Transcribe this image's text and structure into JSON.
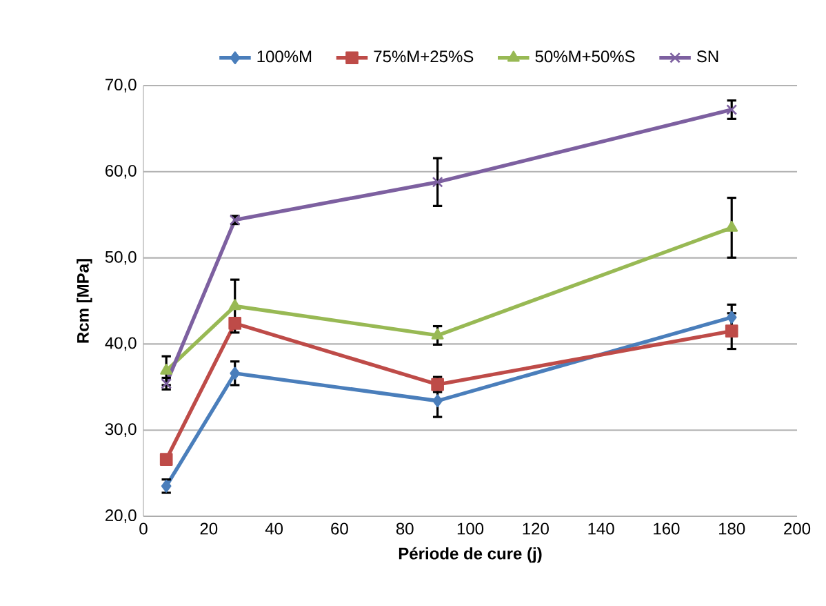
{
  "chart_data": {
    "type": "line",
    "xlabel": "Période de cure (j)",
    "ylabel": "Rcm [MPa]",
    "x": [
      7,
      28,
      90,
      180
    ],
    "series": [
      {
        "name": "100%M",
        "color": "#4a7ebb",
        "marker": "diamond",
        "values": [
          23.5,
          36.6,
          33.4,
          43.1
        ],
        "errors": [
          0.9,
          1.5,
          2.0,
          1.6
        ]
      },
      {
        "name": "75%M+25%S",
        "color": "#be4b48",
        "marker": "square",
        "values": [
          26.6,
          42.4,
          35.3,
          41.5
        ],
        "errors": [
          null,
          null,
          1.0,
          2.2
        ]
      },
      {
        "name": "50%M+50%S",
        "color": "#98b954",
        "marker": "triangle",
        "values": [
          36.9,
          44.4,
          41.0,
          53.5
        ],
        "errors": [
          1.8,
          3.2,
          1.2,
          3.6
        ]
      },
      {
        "name": "SN",
        "color": "#7d60a0",
        "marker": "cross",
        "values": [
          35.4,
          54.4,
          58.8,
          67.2
        ],
        "errors": [
          0.8,
          0.6,
          2.9,
          1.2
        ]
      }
    ],
    "xlim": [
      0,
      200
    ],
    "xticks": [
      0,
      20,
      40,
      60,
      80,
      100,
      120,
      140,
      160,
      180,
      200
    ],
    "ylim": [
      20,
      70
    ],
    "yticks": [
      {
        "value": 20,
        "label": "20,0"
      },
      {
        "value": 30,
        "label": "30,0"
      },
      {
        "value": 40,
        "label": "40,0"
      },
      {
        "value": 50,
        "label": "50,0"
      },
      {
        "value": 60,
        "label": "60,0"
      },
      {
        "value": 70,
        "label": "70,0"
      }
    ],
    "grid": "y",
    "legend": "top"
  }
}
